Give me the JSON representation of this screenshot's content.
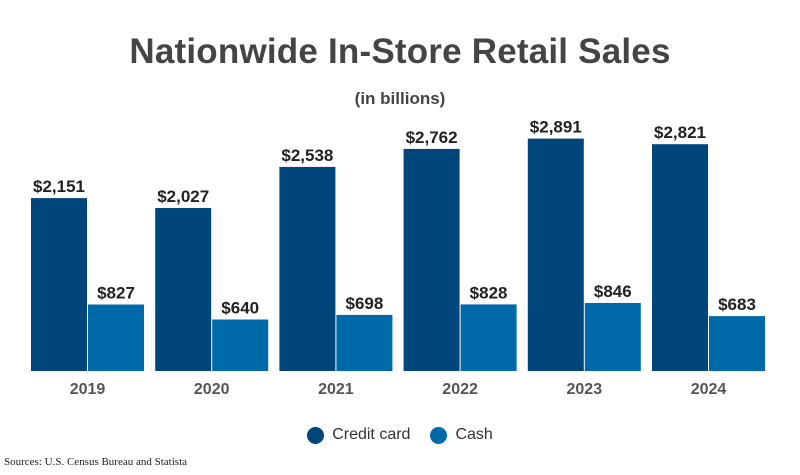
{
  "chart_data": {
    "type": "bar",
    "title": "Nationwide In-Store Retail Sales",
    "subtitle": "(in billions)",
    "categories": [
      "2019",
      "2020",
      "2021",
      "2022",
      "2023",
      "2024"
    ],
    "series": [
      {
        "name": "Credit card",
        "values": [
          2151,
          2027,
          2538,
          2762,
          2891,
          2821
        ],
        "labels": [
          "$2,151",
          "$2,027",
          "$2,538",
          "$2,762",
          "$2,891",
          "$2,821"
        ],
        "color": "#00467a"
      },
      {
        "name": "Cash",
        "values": [
          827,
          640,
          698,
          828,
          846,
          683
        ],
        "labels": [
          "$827",
          "$640",
          "$698",
          "$828",
          "$846",
          "$683"
        ],
        "color": "#0069a8"
      }
    ],
    "ylim": [
      0,
      3000
    ],
    "grid": false,
    "legend_position": "bottom-center",
    "xlabel": "",
    "ylabel": ""
  },
  "source": "Sources: U.S. Census Bureau and Statista"
}
